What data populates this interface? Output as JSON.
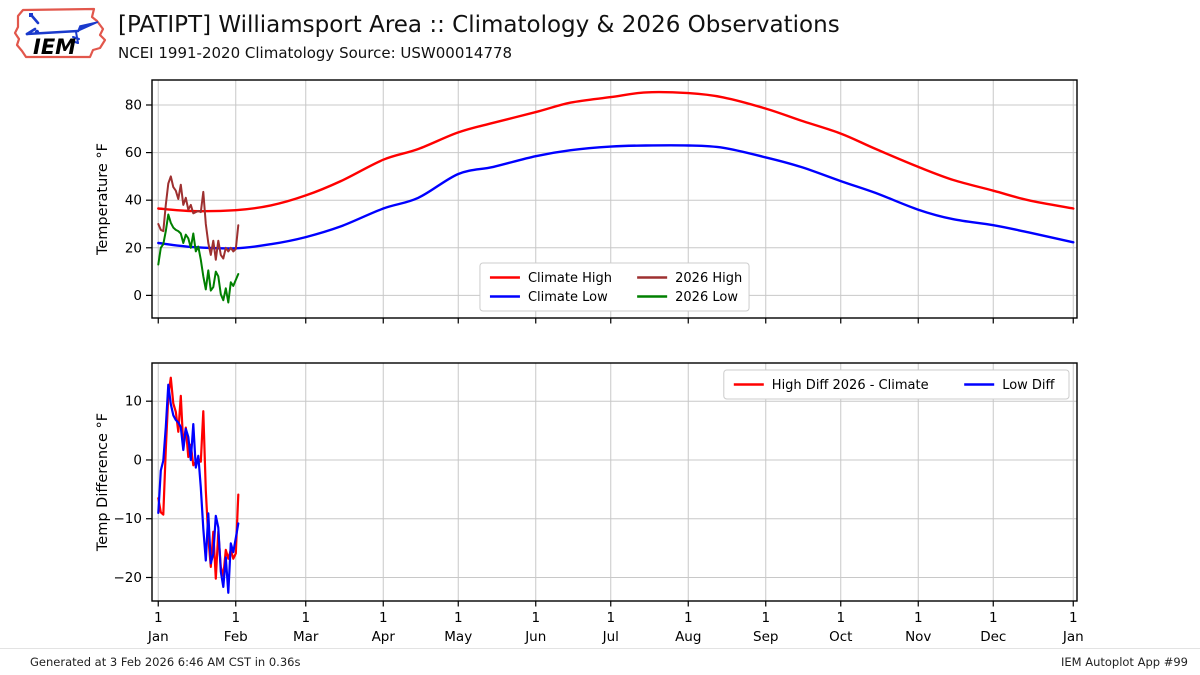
{
  "header": {
    "title": "[PATIPT] Williamsport Area :: Climatology & 2026 Observations",
    "subtitle": "NCEI 1991-2020 Climatology Source: USW00014778",
    "logo_text": "IEM"
  },
  "footer": {
    "generated": "Generated at 3 Feb 2026 6:46 AM CST in 0.36s",
    "app": "IEM Autoplot App #99"
  },
  "colors": {
    "climate_high": "#ff0000",
    "climate_low": "#0000ff",
    "obs_high": "#9e3030",
    "obs_low": "#008000",
    "grid": "#c8c8c8",
    "frame": "#000000",
    "legend_border": "#cccccc"
  },
  "axis": {
    "month_doy": [
      1,
      32,
      60,
      91,
      121,
      152,
      182,
      213,
      244,
      274,
      305,
      335,
      367
    ],
    "month_labels": [
      "Jan",
      "Feb",
      "Mar",
      "Apr",
      "May",
      "Jun",
      "Jul",
      "Aug",
      "Sep",
      "Oct",
      "Nov",
      "Dec",
      "Jan"
    ],
    "day_label": "1"
  },
  "chart_data": [
    {
      "type": "line",
      "ylabel": "Temperature °F",
      "ylim": [
        -9.5,
        90.5
      ],
      "yticks": [
        0,
        20,
        40,
        60,
        80
      ],
      "xlim": [
        -1.5,
        368.5
      ],
      "grid": true,
      "x_tick_labels": false,
      "legend_position": "bottom-center",
      "legend_cols": 2,
      "series": [
        {
          "name": "Climate High",
          "color": "#ff0000",
          "width": 2.4,
          "smooth": true,
          "x": [
            1,
            15,
            32,
            46,
            60,
            74,
            91,
            105,
            121,
            135,
            152,
            166,
            182,
            196,
            213,
            227,
            244,
            258,
            274,
            288,
            305,
            319,
            335,
            349,
            367
          ],
          "values": [
            36.5,
            35.4,
            35.8,
            37.8,
            42,
            48,
            57,
            61.5,
            68.5,
            72.5,
            77,
            81,
            83.3,
            85.3,
            85.0,
            83.2,
            78.5,
            73.5,
            68,
            61.5,
            54,
            48.5,
            44,
            40,
            36.5
          ]
        },
        {
          "name": "Climate Low",
          "color": "#0000ff",
          "width": 2.4,
          "smooth": true,
          "x": [
            1,
            15,
            32,
            46,
            60,
            74,
            91,
            105,
            121,
            135,
            152,
            166,
            182,
            196,
            213,
            227,
            244,
            258,
            274,
            288,
            305,
            319,
            335,
            349,
            367
          ],
          "values": [
            22,
            20.3,
            19.8,
            21.5,
            24.5,
            29,
            36.5,
            41,
            51,
            54,
            58.5,
            61,
            62.5,
            63,
            63,
            62,
            58,
            54,
            48,
            43,
            36,
            32,
            29.5,
            26.5,
            22.3
          ]
        },
        {
          "name": "2026 High",
          "color": "#9e3030",
          "width": 2,
          "smooth": false,
          "x": [
            1,
            2,
            3,
            4,
            5,
            6,
            7,
            8,
            9,
            10,
            11,
            12,
            13,
            14,
            15,
            16,
            17,
            18,
            19,
            20,
            21,
            22,
            23,
            24,
            25,
            26,
            27,
            28,
            29,
            30,
            31,
            32,
            33
          ],
          "values": [
            30,
            27.5,
            27,
            38,
            47,
            50,
            45.5,
            44,
            40.5,
            46.5,
            38,
            41,
            36,
            38,
            34.5,
            35,
            35.5,
            35,
            43.5,
            30,
            22,
            17,
            23,
            15,
            23,
            17,
            15.5,
            20,
            18.5,
            20,
            18.5,
            19.5,
            29.5
          ]
        },
        {
          "name": "2026 Low",
          "color": "#008000",
          "width": 2,
          "smooth": false,
          "x": [
            1,
            2,
            3,
            4,
            5,
            6,
            7,
            8,
            9,
            10,
            11,
            12,
            13,
            14,
            15,
            16,
            17,
            18,
            19,
            20,
            21,
            22,
            23,
            24,
            25,
            26,
            27,
            28,
            29,
            30,
            31,
            32,
            33
          ],
          "values": [
            13,
            20,
            21.5,
            27,
            34,
            30.5,
            28.5,
            27.5,
            27,
            26,
            22,
            25.5,
            24,
            20,
            26,
            18.5,
            20.5,
            15,
            8,
            2.5,
            10.5,
            2,
            3.5,
            10,
            8,
            0.5,
            -2,
            3,
            -3,
            5.5,
            4,
            6.5,
            9
          ]
        }
      ]
    },
    {
      "type": "line",
      "ylabel": "Temp Difference °F",
      "ylim": [
        -24,
        16.5
      ],
      "yticks": [
        -20,
        -10,
        0,
        10
      ],
      "xlim": [
        -1.5,
        368.5
      ],
      "grid": true,
      "x_tick_labels": true,
      "legend_position": "top-right",
      "legend_cols": 2,
      "series": [
        {
          "name": "High Diff 2026 - Climate",
          "color": "#ff0000",
          "width": 2.2,
          "smooth": false,
          "x": [
            1,
            2,
            3,
            4,
            5,
            6,
            7,
            8,
            9,
            10,
            11,
            12,
            13,
            14,
            15,
            16,
            17,
            18,
            19,
            20,
            21,
            22,
            23,
            24,
            25,
            26,
            27,
            28,
            29,
            30,
            31,
            32,
            33
          ],
          "values": [
            -6.5,
            -8.9,
            -9.3,
            1.8,
            10.9,
            14.0,
            9.6,
            8.2,
            4.8,
            10.9,
            2.4,
            5.5,
            0.5,
            2.6,
            -0.9,
            -0.3,
            0.2,
            -0.3,
            8.3,
            -5.2,
            -13.2,
            -18.2,
            -12.2,
            -20.2,
            -12.2,
            -18.2,
            -19.7,
            -15.3,
            -16.8,
            -15.3,
            -16.8,
            -15.9,
            -5.9
          ]
        },
        {
          "name": "Low Diff",
          "color": "#0000ff",
          "width": 2.2,
          "smooth": false,
          "x": [
            1,
            2,
            3,
            4,
            5,
            6,
            7,
            8,
            9,
            10,
            11,
            12,
            13,
            14,
            15,
            16,
            17,
            18,
            19,
            20,
            21,
            22,
            23,
            24,
            25,
            26,
            27,
            28,
            29,
            30,
            31,
            32,
            33
          ],
          "values": [
            -9.0,
            -1.8,
            -0.1,
            5.6,
            12.8,
            9.5,
            7.6,
            6.8,
            6.4,
            5.6,
            1.7,
            5.3,
            3.9,
            0.0,
            6.1,
            -1.3,
            0.7,
            -4.7,
            -11.7,
            -17.1,
            -9.1,
            -17.6,
            -16.0,
            -9.5,
            -11.5,
            -19.0,
            -21.6,
            -16.6,
            -22.6,
            -14.2,
            -15.7,
            -13.3,
            -10.8
          ]
        }
      ]
    }
  ]
}
